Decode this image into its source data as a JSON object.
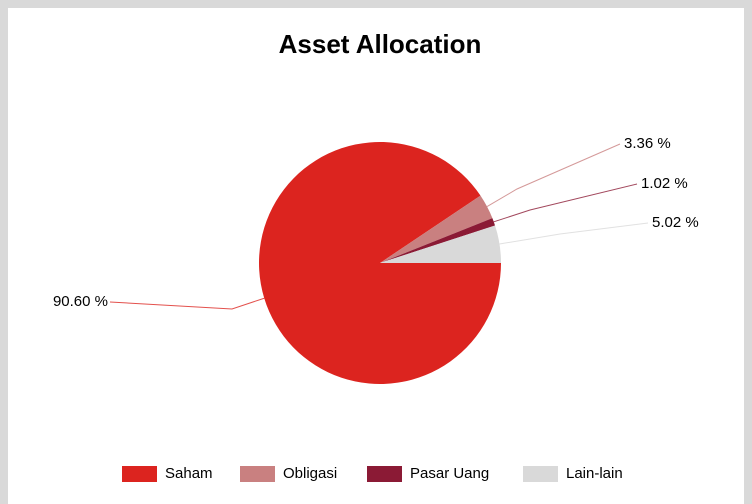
{
  "chart_data": {
    "type": "pie",
    "title": "Asset Allocation",
    "categories": [
      "Saham",
      "Obligasi",
      "Pasar Uang",
      "Lain-lain"
    ],
    "values": [
      90.6,
      3.36,
      1.02,
      5.02
    ],
    "value_labels": [
      "90.60 %",
      "3.36 %",
      "1.02 %",
      "5.02 %"
    ],
    "colors": [
      "#dc241f",
      "#c98080",
      "#8b1a35",
      "#d9d9d9"
    ],
    "legend": "bottom"
  }
}
